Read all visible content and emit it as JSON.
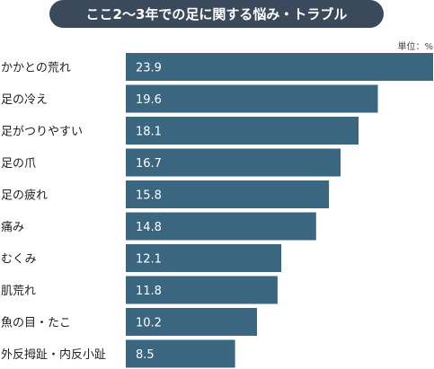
{
  "chart_data": {
    "type": "bar",
    "orientation": "horizontal",
    "title": "ここ2～3年での足に関する悩み・トラブル",
    "unit": "単位：%",
    "categories": [
      "かかとの荒れ",
      "足の冷え",
      "足がつりやすい",
      "足の爪",
      "足の疲れ",
      "痛み",
      "むくみ",
      "肌荒れ",
      "魚の目・たこ",
      "外反拇趾・内反小趾"
    ],
    "values": [
      23.9,
      19.6,
      18.1,
      16.7,
      15.8,
      14.8,
      12.1,
      11.8,
      10.2,
      8.5
    ],
    "value_labels": [
      "23.9",
      "19.6",
      "18.1",
      "16.7",
      "15.8",
      "14.8",
      "12.1",
      "11.8",
      "10.2",
      "8.5"
    ],
    "xlim": [
      0,
      23.9
    ],
    "grid": false,
    "legend": "none",
    "colors": {
      "bar": "#3a6680",
      "title_bg": "#3a4a5c",
      "title_text": "#ffffff",
      "value_text": "#ffffff",
      "label_text": "#222222"
    }
  }
}
